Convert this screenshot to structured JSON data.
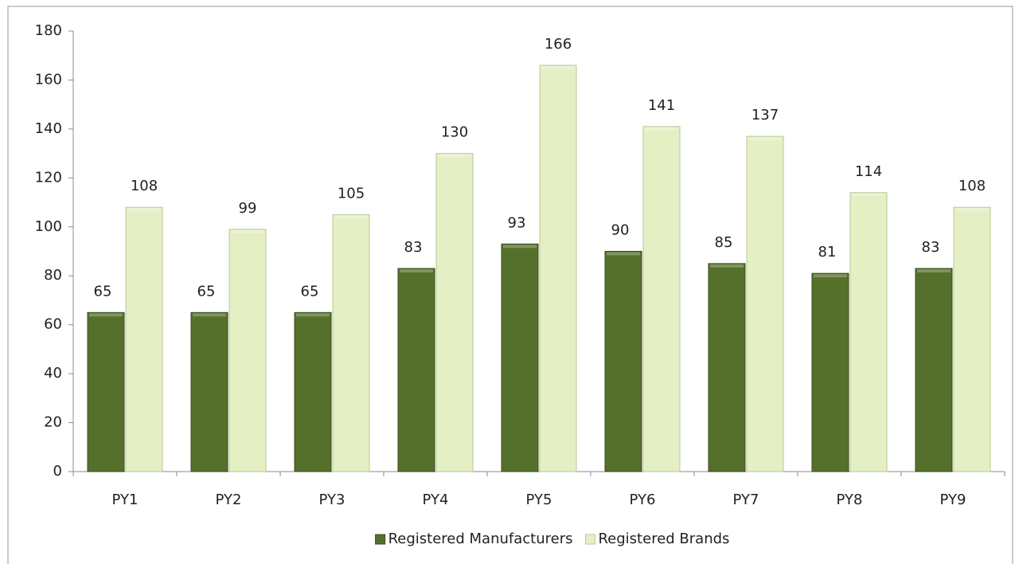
{
  "chart_data": {
    "type": "bar",
    "categories": [
      "PY1",
      "PY2",
      "PY3",
      "PY4",
      "PY5",
      "PY6",
      "PY7",
      "PY8",
      "PY9"
    ],
    "series": [
      {
        "name": "Registered Manufacturers",
        "color": "#55702b",
        "values": [
          65,
          65,
          65,
          83,
          93,
          90,
          85,
          81,
          83
        ]
      },
      {
        "name": "Registered Brands",
        "color": "#e4efc4",
        "values": [
          108,
          99,
          105,
          130,
          166,
          141,
          137,
          114,
          108
        ]
      }
    ],
    "ylim": [
      0,
      180
    ],
    "yticks": [
      0,
      20,
      40,
      60,
      80,
      100,
      120,
      140,
      160,
      180
    ],
    "legend": "bottom"
  }
}
